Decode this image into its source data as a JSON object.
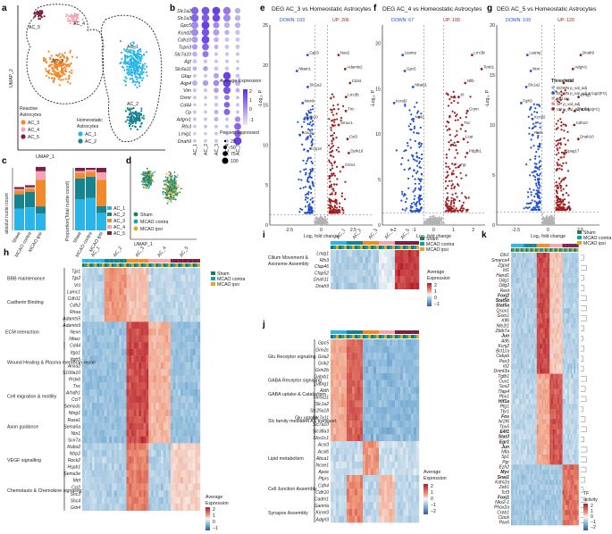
{
  "panel_letters": [
    "a",
    "b",
    "c",
    "d",
    "e",
    "f",
    "g",
    "h",
    "i",
    "j",
    "k"
  ],
  "colors": {
    "ac1": "#2ab5e8",
    "ac2": "#17838f",
    "ac3": "#f08a2c",
    "ac4": "#f4a4b4",
    "ac5": "#7c1f45",
    "sham": "#1f7a5a",
    "contra": "#12a0ae",
    "ipsi": "#e0a81b",
    "down": "#1f4fd6",
    "up": "#a11d1d",
    "ns": "#b3b3b3"
  },
  "panel_a": {
    "xlabel": "UMAP_1",
    "ylabel": "UMAP_2",
    "cluster_labels": [
      "AC_5",
      "AC_4",
      "AC_3",
      "AC_2",
      "AC_1"
    ],
    "reactive_title": [
      "Reactive",
      "Astrocytes"
    ],
    "homeo_title": [
      "Homeostatic",
      "Astrocytes"
    ],
    "reactive_legend": [
      "AC_3",
      "AC_4",
      "AC_5"
    ],
    "homeo_legend": [
      "AC_1",
      "AC_2"
    ]
  },
  "panel_b": {
    "genes": [
      "Slc1a2",
      "Slc1a3",
      "Gpc5",
      "Kcnd2",
      "Cdh10",
      "Tcpn3",
      "Slc7a10",
      "Agt",
      "Slc6a11",
      "Gfap",
      "Aqp4",
      "Vim",
      "Osmr",
      "Cd44",
      "Cp",
      "Adgrv1",
      "Rfx3",
      "Lmig1",
      "Dnah9"
    ],
    "clusters": [
      "AC_1",
      "AC_2",
      "AC_3",
      "AC_4",
      "AC_5"
    ],
    "legend_title": "Average Expression",
    "legend_ticks": [
      "2",
      "1",
      "0",
      "-1"
    ],
    "size_title": "Percent Expressed",
    "size_ticks": [
      "25",
      "50",
      "75",
      "100"
    ],
    "size_matrix": [
      [
        0.9,
        0.95,
        0.95,
        0.9,
        0.6
      ],
      [
        0.9,
        0.9,
        0.9,
        0.85,
        0.6
      ],
      [
        0.85,
        0.95,
        0.7,
        0.6,
        0.6
      ],
      [
        0.85,
        0.9,
        0.7,
        0.5,
        0.5
      ],
      [
        0.7,
        0.95,
        0.5,
        0.4,
        0.4
      ],
      [
        0.6,
        0.8,
        0.4,
        0.4,
        0.4
      ],
      [
        0.5,
        0.7,
        0.3,
        0.3,
        0.3
      ],
      [
        0.4,
        0.35,
        0.3,
        0.3,
        0.2
      ],
      [
        0.4,
        0.5,
        0.4,
        0.35,
        0.3
      ],
      [
        0.3,
        0.3,
        0.55,
        0.9,
        0.4
      ],
      [
        0.55,
        0.6,
        0.65,
        0.95,
        0.6
      ],
      [
        0.3,
        0.3,
        0.5,
        0.85,
        0.4
      ],
      [
        0.3,
        0.25,
        0.35,
        0.55,
        0.3
      ],
      [
        0.2,
        0.2,
        0.35,
        0.65,
        0.3
      ],
      [
        0.3,
        0.25,
        0.4,
        0.7,
        0.3
      ],
      [
        0.3,
        0.3,
        0.4,
        0.3,
        0.6
      ],
      [
        0.25,
        0.3,
        0.3,
        0.3,
        0.8
      ],
      [
        0.2,
        0.2,
        0.25,
        0.25,
        0.8
      ],
      [
        0.25,
        0.25,
        0.3,
        0.3,
        0.95
      ]
    ],
    "color_matrix": [
      [
        0.7,
        0.8,
        0.9,
        0.6,
        0.3
      ],
      [
        0.7,
        0.75,
        0.85,
        0.5,
        0.3
      ],
      [
        0.5,
        0.9,
        0.5,
        0.3,
        0.3
      ],
      [
        0.5,
        0.8,
        0.4,
        0.3,
        0.2
      ],
      [
        0.4,
        0.85,
        0.3,
        0.2,
        0.2
      ],
      [
        0.4,
        0.7,
        0.3,
        0.2,
        0.2
      ],
      [
        0.3,
        0.6,
        0.2,
        0.2,
        0.2
      ],
      [
        0.2,
        0.2,
        0.2,
        0.2,
        0.2
      ],
      [
        0.3,
        0.4,
        0.2,
        0.2,
        0.2
      ],
      [
        0.2,
        0.2,
        0.4,
        0.9,
        0.2
      ],
      [
        0.3,
        0.4,
        0.5,
        0.9,
        0.3
      ],
      [
        0.2,
        0.2,
        0.4,
        0.8,
        0.3
      ],
      [
        0.2,
        0.2,
        0.2,
        0.6,
        0.2
      ],
      [
        0.2,
        0.2,
        0.2,
        0.7,
        0.2
      ],
      [
        0.2,
        0.2,
        0.3,
        0.7,
        0.2
      ],
      [
        0.2,
        0.2,
        0.3,
        0.2,
        0.5
      ],
      [
        0.2,
        0.2,
        0.2,
        0.2,
        0.7
      ],
      [
        0.2,
        0.2,
        0.2,
        0.2,
        0.7
      ],
      [
        0.2,
        0.2,
        0.2,
        0.2,
        0.9
      ]
    ]
  },
  "panel_c": {
    "ylabel_left": "absolut nuclei count",
    "ylabel_right": "Proportion(Total nuclei count)",
    "conditions": [
      "Sham",
      "MCAO contra",
      "MCAO ipsi"
    ],
    "legend": [
      "AC_1",
      "AC_2",
      "AC_3",
      "AC_4",
      "AC_5"
    ],
    "chart_data": [
      {
        "type": "bar",
        "title": "",
        "categories": [
          "Sham",
          "MCAO contra",
          "MCAO ipsi"
        ],
        "series": [
          {
            "name": "AC_1",
            "values": [
              45,
              48,
              35
            ]
          },
          {
            "name": "AC_2",
            "values": [
              30,
              32,
              15
            ]
          },
          {
            "name": "AC_3",
            "values": [
              8,
              7,
              55
            ]
          },
          {
            "name": "AC_4",
            "values": [
              3,
              3,
              18
            ]
          },
          {
            "name": "AC_5",
            "values": [
              4,
              4,
              9
            ]
          }
        ],
        "ylabel": "absolut nuclei count"
      },
      {
        "type": "bar",
        "title": "",
        "categories": [
          "Sham",
          "MCAO contra",
          "MCAO ipsi"
        ],
        "series": [
          {
            "name": "AC_1",
            "values": [
              0.5,
              0.52,
              0.28
            ]
          },
          {
            "name": "AC_2",
            "values": [
              0.33,
              0.34,
              0.11
            ]
          },
          {
            "name": "AC_3",
            "values": [
              0.09,
              0.08,
              0.42
            ]
          },
          {
            "name": "AC_4",
            "values": [
              0.03,
              0.03,
              0.12
            ]
          },
          {
            "name": "AC_5",
            "values": [
              0.05,
              0.03,
              0.07
            ]
          }
        ],
        "ylabel": "Proportion(Total nuclei count)"
      }
    ]
  },
  "panel_d": {
    "xlabel": "UMAP_1",
    "ylabel": "UMAP_2",
    "legend": [
      "Sham",
      "MCAO contra",
      "MCAO ipsi"
    ]
  },
  "volcano_common": {
    "xlabel": "Log₂ fold change",
    "ylabel": "-Log₁₀ P",
    "x_ticks": [
      "-2.5",
      "0",
      "2.5"
    ],
    "y_ticks": [
      "0",
      "5",
      "10",
      "15",
      "20",
      "25"
    ],
    "x_ticks_f": [
      "-2",
      "-1",
      "0",
      "1",
      "2"
    ]
  },
  "panel_e": {
    "title": "DEG AC_3 vs Homeostatic Astrocytes",
    "down": "DOWN: 103",
    "up": "UP: 206",
    "genes_up": [
      "Nav2",
      "Adamts2",
      "Cd44",
      "Lrrc3b",
      "Tnc",
      "Smoc1",
      "Cst3",
      "Dyrk1d",
      "Crim1"
    ],
    "genes_down": [
      "Gpc5",
      "Nkain1",
      "Slc1a2",
      "Mertk",
      "Cdh10",
      "Kcnd2",
      "Kcnj10"
    ]
  },
  "panel_f": {
    "title": "DEG AC_4 vs Homeostatic Astrocytes",
    "down": "DOWN: 67",
    "up": "UP: 109",
    "genes_up": [
      "Lrrc3b",
      "Tenb1",
      "Nfib",
      "Kl",
      "Crym",
      "Tnc",
      "Lcat",
      "Pdgfb1",
      "Fgr"
    ],
    "genes_down": [
      "Lsamp",
      "Gpc5",
      "Nkain1",
      "Kcnd2",
      "Ntrk1"
    ]
  },
  "panel_g": {
    "title": "DEG AC_5 vs Homeostatic Astrocytes",
    "down": "DOWN: 109",
    "up": "UP: 129",
    "threshold_title": "Threshold",
    "threshold_items": [
      "DOWN p_val_adj",
      "DOWN p_val_adj & log2(FC)",
      "Not sig.",
      "UP p_val_adj",
      "UP p_val_adj & log2(FC)"
    ],
    "genes_up": [
      "Dnah9",
      "Adgrv1",
      "Rfx3",
      "Lmig1",
      "Cfap54",
      "Cdh10",
      "Dnah10",
      "Spag17"
    ],
    "genes_down": [
      "Lsamp",
      "Ntm",
      "Slc1a2",
      "Fgfr3",
      "Kcnd2",
      "Rorb"
    ]
  },
  "heat_cond_legend": [
    "Sham",
    "MCAO contra",
    "MCAO ipsi"
  ],
  "panel_h": {
    "clusters": [
      "AC_1",
      "AC_2",
      "AC_3",
      "AC_4",
      "AC_5"
    ],
    "genes": [
      "Tjp1",
      "Tjp2",
      "Vcl",
      "Lamc1",
      "Cdh11",
      "Cdh2",
      "Rhoa",
      "Adamts5",
      "Adamts9",
      "Nexn",
      "Nfasc",
      "Cd44",
      "Itga1",
      "Itgb5",
      "Anxa2",
      "S100a10",
      "Prdx6",
      "Tnc",
      "Arhdh1",
      "Ccl7",
      "Sema3c",
      "Ntng1",
      "Rasa1",
      "Sema6a",
      "Ntn1",
      "Scn7a",
      "Robo2",
      "Ntrp2",
      "Rock2",
      "Hspb1",
      "Sema3e",
      "Met",
      "Ccl2",
      "Shc3",
      "Shc4",
      "Grb4"
    ],
    "groups": [
      "BBB  maintenance",
      "Cadherin Binding",
      "ECM interaction",
      "Wound Healing & Plasma membran repair",
      "Cell migration & motility",
      "Axon guidance",
      "VEGF signalling",
      "Chemotaxis & Chemokine signaling"
    ],
    "legend_title": [
      "Average",
      "Expression"
    ],
    "legend_ticks": [
      "2",
      "1",
      "0",
      "−1"
    ]
  },
  "panel_i": {
    "clusters": [
      "AC_1",
      "AC_2",
      "AC_3",
      "AC_4",
      "AC_5"
    ],
    "genes": [
      "Lmig1",
      "Rfx3",
      "Cfap46",
      "Cfap52",
      "Dnah11",
      "Dnah9"
    ],
    "group": [
      "Cilium Movement &",
      "Axoneme Assembly"
    ],
    "legend_title": [
      "Average",
      "Expression"
    ],
    "legend_ticks": [
      "2",
      "1",
      "0",
      "−1"
    ]
  },
  "panel_j": {
    "genes": [
      "Gpc5",
      "Grin2c",
      "Gria2",
      "Grik2",
      "Grin2b",
      "Gabrb1",
      "Gabrg1",
      "Aldh",
      "Slc6a11",
      "Slc1a2",
      "Slc25a18",
      "Slc7a11",
      "Slc7a10",
      "Slc38a3",
      "Slco1c1",
      "Acsl3",
      "Acsl6",
      "Abca1",
      "Ncoe1",
      "Apoe",
      "Ptprs",
      "Cdh4",
      "Cdh10",
      "Cadm1",
      "Gamrla",
      "Kirrel3",
      "Adgrl3"
    ],
    "groups": [
      "Glu Receptor signaling",
      "GABA Receptor signaling",
      "GABA uptake & Catabolism",
      "Slc family mediated AS transport",
      "Glu uptake",
      "Lipid metabolism",
      "Cell Junction Assembly",
      "Synapse Assembly"
    ],
    "legend_title": [
      "Average",
      "Expression"
    ],
    "legend_ticks": [
      "2",
      "1",
      "0",
      "−1",
      "−2"
    ]
  },
  "panel_k": {
    "genes": [
      "Dlx1",
      "Smarca4",
      "Zgpat",
      "Id1",
      "Hand1",
      "Olig1",
      "Olig2",
      "Rest",
      "Foxj2",
      "Stat5b",
      "Stat5a",
      "Qsox1",
      "Gsm1",
      "Klf6",
      "Nfe2l1",
      "Zbtb7a",
      "Jun",
      "Atf6",
      "Kcnj2",
      "Bcl11a",
      "Cebpb",
      "Pax3",
      "Id2",
      "Dnmt3a",
      "Tgfb1",
      "Cux1",
      "Sox2",
      "Tfap4",
      "Pbx1",
      "Hif1a",
      "Ptg1",
      "Tbr1",
      "Fos",
      "Nr2f6",
      "Tbx5",
      "E4f1",
      "Stat3",
      "Egr1",
      "Jun",
      "Nfia",
      "Sp1",
      "Pgr",
      "Ezh2",
      "Myc",
      "Snai1",
      "Kdm2a",
      "Zeb1",
      "Tcf3",
      "Foxj1",
      "Nkx2-1",
      "Phox2a",
      "Creb1",
      "Clock",
      "Pax6"
    ],
    "bold": [
      "Foxj2",
      "Stat5b",
      "Stat5a",
      "Hif1a",
      "Fos",
      "E4f1",
      "Stat3",
      "Egr1",
      "Jun",
      "Myc",
      "Snai1",
      "Foxj1"
    ],
    "legend_title": [
      "TF",
      "activity"
    ],
    "legend_ticks": [
      "2",
      "1",
      "0",
      "−1",
      "−2"
    ]
  }
}
